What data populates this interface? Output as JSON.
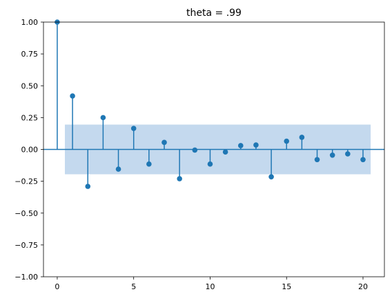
{
  "chart_data": {
    "type": "stem",
    "title": "theta = .99",
    "xlabel": "",
    "ylabel": "",
    "xlim": [
      -0.9,
      21.4
    ],
    "ylim": [
      -1.0,
      1.0
    ],
    "x_ticks": [
      0,
      5,
      10,
      15,
      20
    ],
    "x_tick_labels": [
      "0",
      "5",
      "10",
      "15",
      "20"
    ],
    "y_ticks": [
      -1.0,
      -0.75,
      -0.5,
      -0.25,
      0.0,
      0.25,
      0.5,
      0.75,
      1.0
    ],
    "y_tick_labels": [
      "−1.00",
      "−0.75",
      "−0.50",
      "−0.25",
      "0.00",
      "0.25",
      "0.50",
      "0.75",
      "1.00"
    ],
    "grid": false,
    "legend": "none",
    "series": [
      {
        "x": [
          0,
          1,
          2,
          3,
          4,
          5,
          6,
          7,
          8,
          9,
          10,
          11,
          12,
          13,
          14,
          15,
          16,
          17,
          18,
          19,
          20
        ],
        "values": [
          1.0,
          0.42,
          -0.29,
          0.25,
          -0.155,
          0.165,
          -0.115,
          0.055,
          -0.23,
          -0.005,
          -0.115,
          -0.02,
          0.03,
          0.035,
          -0.215,
          0.065,
          0.095,
          -0.08,
          -0.045,
          -0.035,
          -0.08
        ]
      }
    ],
    "confidence_band": {
      "x_range": [
        0.5,
        20.5
      ],
      "lower": -0.195,
      "upper": 0.195
    },
    "colors": {
      "stem": "#1f77b4",
      "band": "#c4d9ee",
      "axis": "#000000"
    }
  }
}
